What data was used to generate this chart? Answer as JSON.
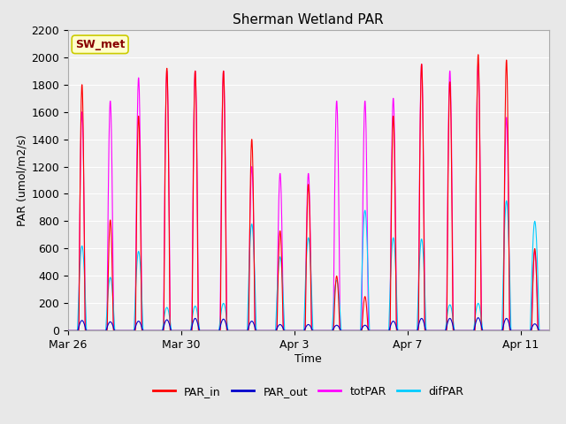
{
  "title": "Sherman Wetland PAR",
  "xlabel": "Time",
  "ylabel": "PAR (umol/m2/s)",
  "ylim": [
    0,
    2200
  ],
  "yticks": [
    0,
    200,
    400,
    600,
    800,
    1000,
    1200,
    1400,
    1600,
    1800,
    2000,
    2200
  ],
  "legend_labels": [
    "PAR_in",
    "PAR_out",
    "totPAR",
    "difPAR"
  ],
  "legend_colors": [
    "#ff0000",
    "#0000cc",
    "#ff00ff",
    "#00ccff"
  ],
  "station_label": "SW_met",
  "station_box_facecolor": "#ffffcc",
  "station_box_edgecolor": "#cccc00",
  "station_text_color": "#880000",
  "background_color": "#e8e8e8",
  "plot_bg_color": "#f0f0f0",
  "grid_color": "#ffffff",
  "start_day": 0,
  "end_day": 17,
  "xtick_labels": [
    "Mar 26",
    "Mar 30",
    "Apr 3",
    "Apr 7",
    "Apr 11"
  ],
  "xtick_positions": [
    0,
    4,
    8,
    12,
    16
  ],
  "daily_peaks_PAR_in": [
    1800,
    810,
    1570,
    1920,
    1900,
    1900,
    1400,
    730,
    1070,
    400,
    250,
    1570,
    1950,
    1820,
    2020,
    1980,
    600
  ],
  "daily_peaks_PAR_out": [
    75,
    65,
    70,
    80,
    90,
    85,
    70,
    45,
    45,
    40,
    40,
    70,
    90,
    90,
    95,
    90,
    50
  ],
  "daily_peaks_totPAR": [
    1600,
    1680,
    1850,
    1900,
    1900,
    1900,
    1200,
    1150,
    1150,
    1680,
    1680,
    1700,
    1950,
    1900,
    1950,
    1560,
    580
  ],
  "daily_peaks_difPAR": [
    620,
    390,
    580,
    170,
    180,
    200,
    780,
    540,
    680,
    370,
    880,
    680,
    670,
    190,
    200,
    950,
    800
  ]
}
